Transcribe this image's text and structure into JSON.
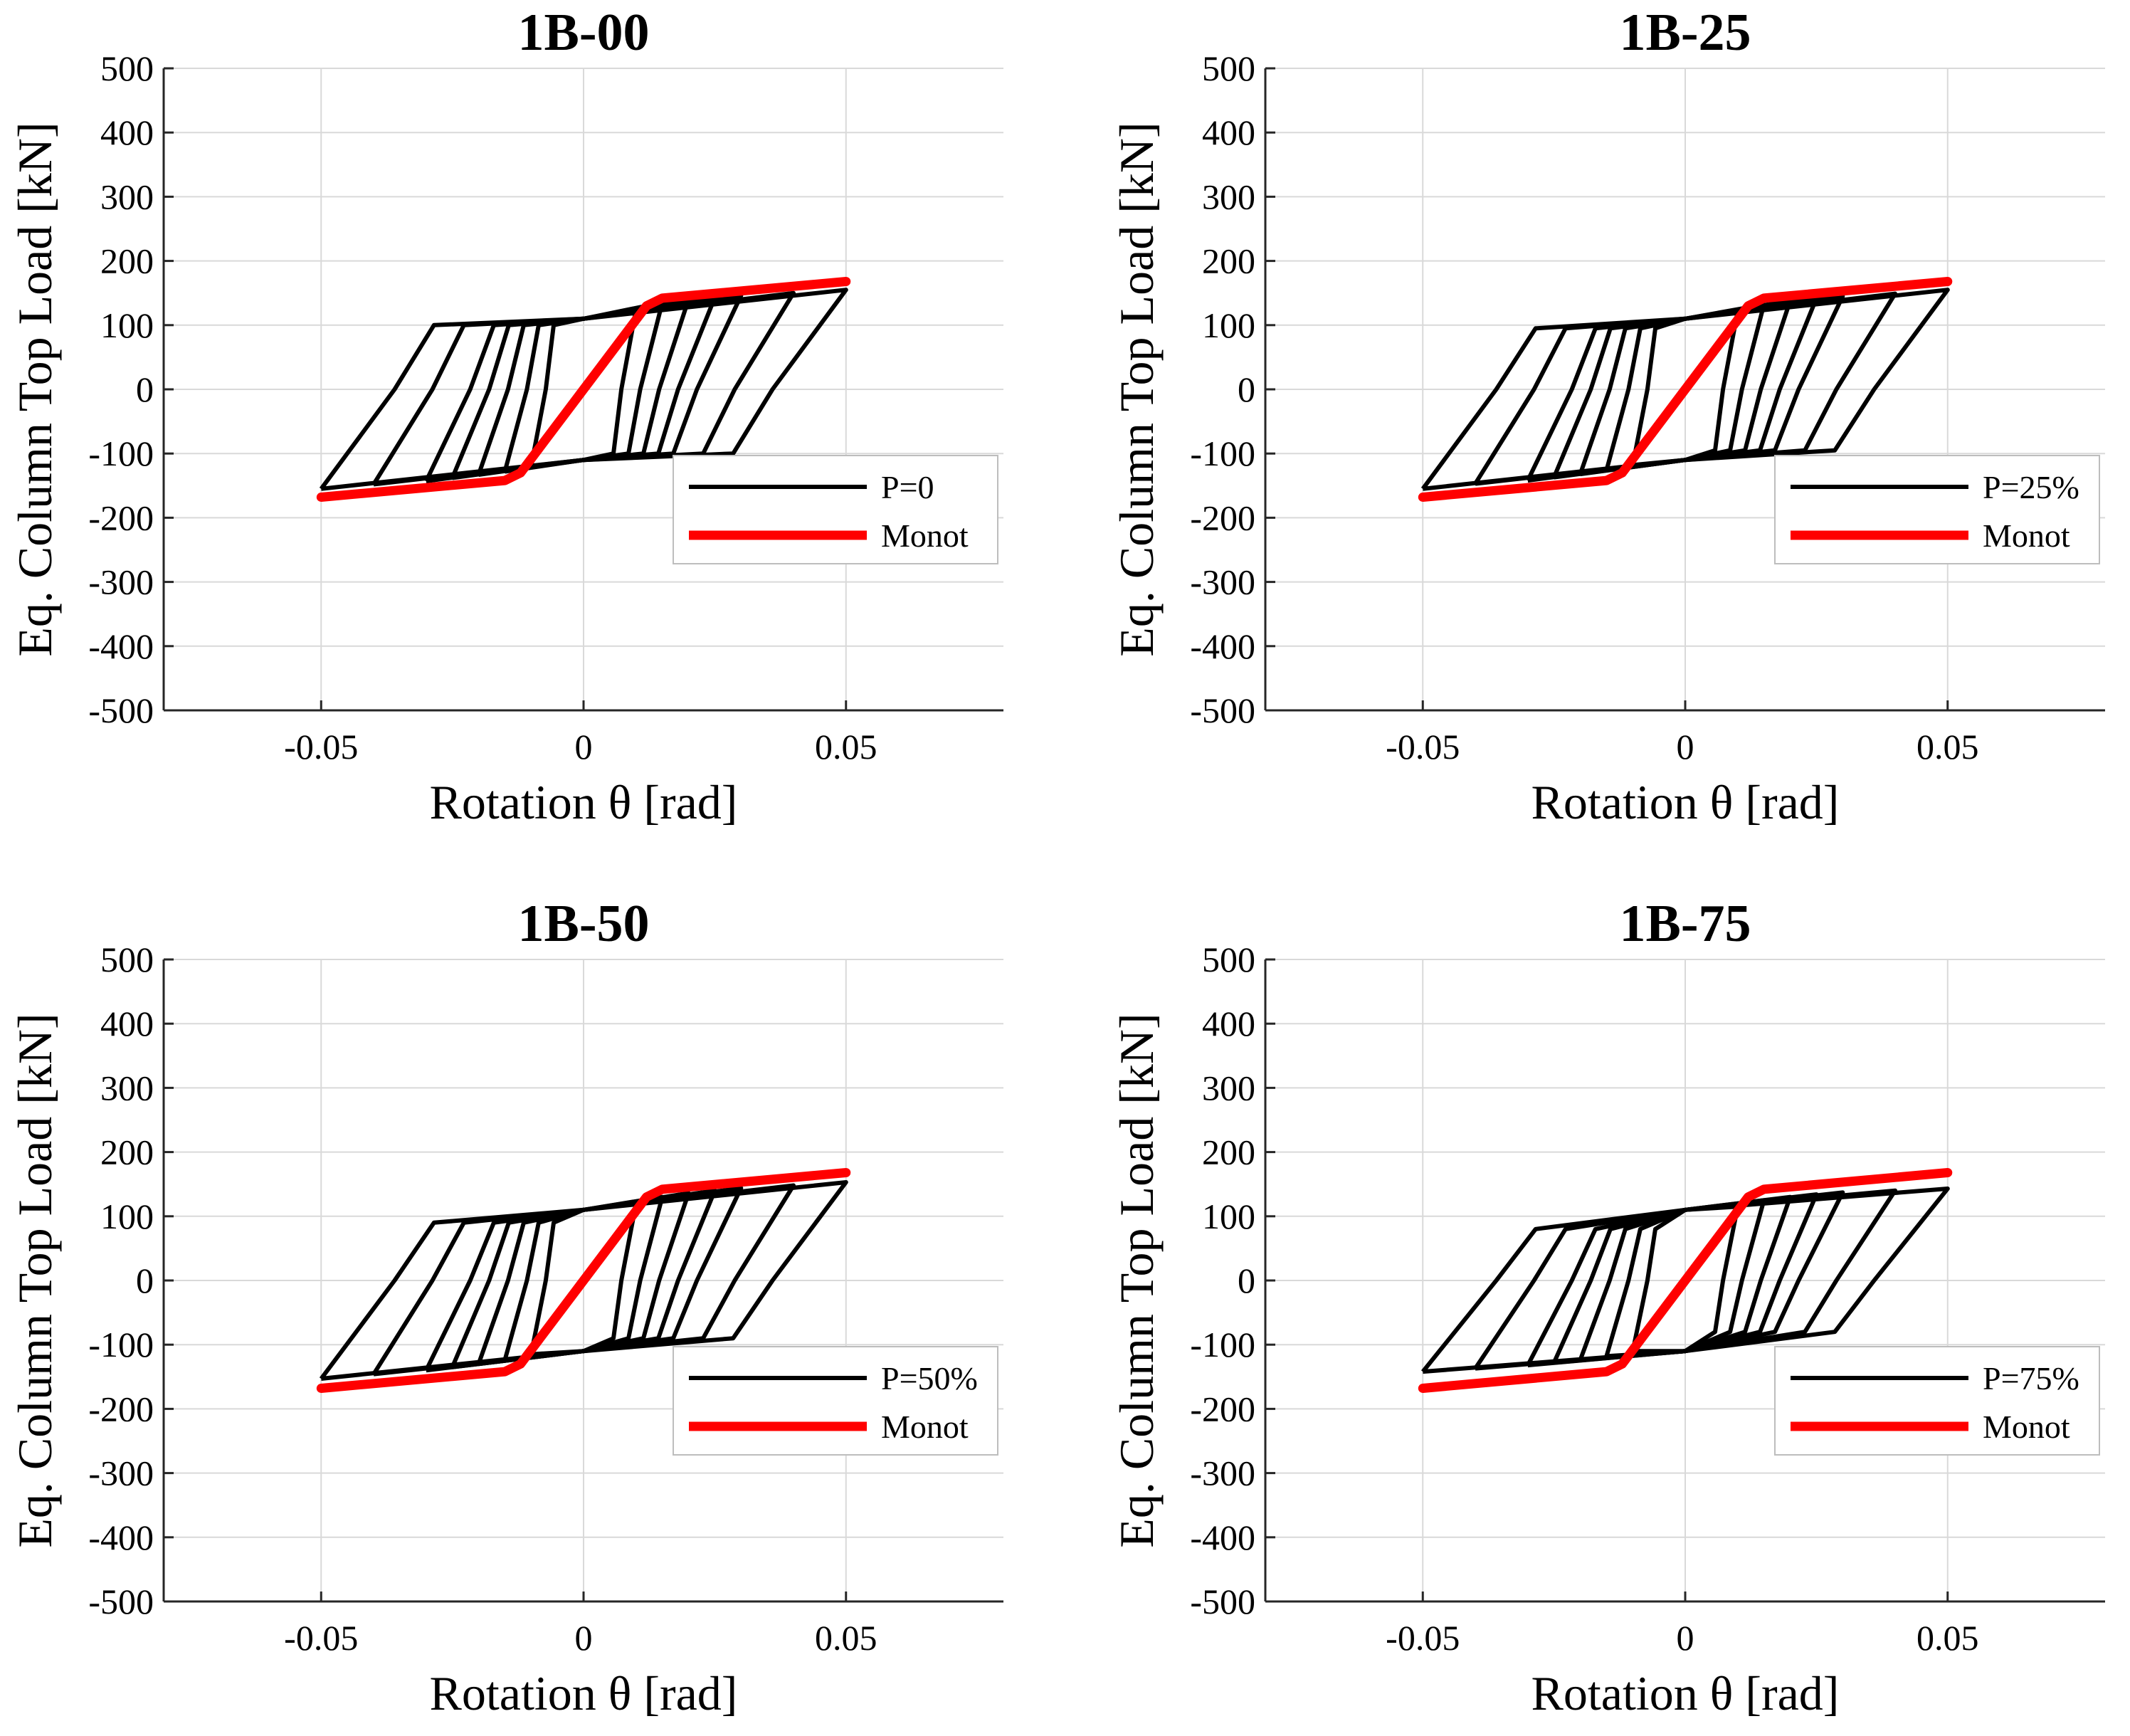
{
  "chart_data": [
    {
      "type": "line",
      "title": "1B-00",
      "xlabel": "Rotation θ [rad]",
      "ylabel": "Eq. Column Top Load [kN]",
      "xlim": [
        -0.08,
        0.08
      ],
      "ylim": [
        -500,
        500
      ],
      "xticks": [
        -0.05,
        0,
        0.05
      ],
      "xtick_labels": [
        "-0.05",
        "0",
        "0.05"
      ],
      "yticks": [
        -500,
        -400,
        -300,
        -200,
        -100,
        0,
        100,
        200,
        300,
        400,
        500
      ],
      "ytick_labels": [
        "-500",
        "-400",
        "-300",
        "-200",
        "-100",
        "0",
        "100",
        "200",
        "300",
        "400",
        "500"
      ],
      "grid": true,
      "legend_position": "lower-right",
      "series": [
        {
          "name": "P=0",
          "color": "#000000",
          "style": "cyclic",
          "amplitudes": [
            0.01,
            0.015,
            0.02,
            0.025,
            0.03,
            0.04,
            0.05
          ],
          "peak_load_pos": [
            125,
            135,
            140,
            143,
            146,
            150,
            155
          ],
          "peak_load_neg": [
            -120,
            -128,
            -133,
            -138,
            -143,
            -148,
            -155
          ],
          "reload_load": 100,
          "residual_rotation_fraction": 0.72
        },
        {
          "name": "Monot",
          "color": "#ff0000",
          "style": "envelope",
          "x": [
            -0.05,
            -0.015,
            -0.012,
            0.012,
            0.015,
            0.05
          ],
          "y": [
            -168,
            -142,
            -130,
            130,
            142,
            168
          ]
        }
      ]
    },
    {
      "type": "line",
      "title": "1B-25",
      "xlabel": "Rotation θ [rad]",
      "ylabel": "Eq. Column Top Load [kN]",
      "xlim": [
        -0.08,
        0.08
      ],
      "ylim": [
        -500,
        500
      ],
      "xticks": [
        -0.05,
        0,
        0.05
      ],
      "xtick_labels": [
        "-0.05",
        "0",
        "0.05"
      ],
      "yticks": [
        -500,
        -400,
        -300,
        -200,
        -100,
        0,
        100,
        200,
        300,
        400,
        500
      ],
      "ytick_labels": [
        "-500",
        "-400",
        "-300",
        "-200",
        "-100",
        "0",
        "100",
        "200",
        "300",
        "400",
        "500"
      ],
      "grid": true,
      "legend_position": "lower-right",
      "series": [
        {
          "name": "P=25%",
          "color": "#000000",
          "style": "cyclic",
          "amplitudes": [
            0.01,
            0.015,
            0.02,
            0.025,
            0.03,
            0.04,
            0.05
          ],
          "peak_load_pos": [
            122,
            132,
            138,
            142,
            145,
            149,
            155
          ],
          "peak_load_neg": [
            -118,
            -126,
            -132,
            -137,
            -142,
            -147,
            -155
          ],
          "reload_load": 95,
          "residual_rotation_fraction": 0.72
        },
        {
          "name": "Monot",
          "color": "#ff0000",
          "style": "envelope",
          "x": [
            -0.05,
            -0.015,
            -0.012,
            0.012,
            0.015,
            0.05
          ],
          "y": [
            -168,
            -142,
            -130,
            130,
            142,
            168
          ]
        }
      ]
    },
    {
      "type": "line",
      "title": "1B-50",
      "xlabel": "Rotation θ [rad]",
      "ylabel": "Eq. Column Top Load [kN]",
      "xlim": [
        -0.08,
        0.08
      ],
      "ylim": [
        -500,
        500
      ],
      "xticks": [
        -0.05,
        0,
        0.05
      ],
      "xtick_labels": [
        "-0.05",
        "0",
        "0.05"
      ],
      "yticks": [
        -500,
        -400,
        -300,
        -200,
        -100,
        0,
        100,
        200,
        300,
        400,
        500
      ],
      "ytick_labels": [
        "-500",
        "-400",
        "-300",
        "-200",
        "-100",
        "0",
        "100",
        "200",
        "300",
        "400",
        "500"
      ],
      "grid": true,
      "legend_position": "lower-right",
      "series": [
        {
          "name": "P=50%",
          "color": "#000000",
          "style": "cyclic",
          "amplitudes": [
            0.01,
            0.015,
            0.02,
            0.025,
            0.03,
            0.04,
            0.05
          ],
          "peak_load_pos": [
            120,
            130,
            136,
            140,
            144,
            148,
            153
          ],
          "peak_load_neg": [
            -115,
            -124,
            -130,
            -135,
            -140,
            -146,
            -153
          ],
          "reload_load": 90,
          "residual_rotation_fraction": 0.72
        },
        {
          "name": "Monot",
          "color": "#ff0000",
          "style": "envelope",
          "x": [
            -0.05,
            -0.015,
            -0.012,
            0.012,
            0.015,
            0.05
          ],
          "y": [
            -168,
            -142,
            -130,
            130,
            142,
            168
          ]
        }
      ]
    },
    {
      "type": "line",
      "title": "1B-75",
      "xlabel": "Rotation θ [rad]",
      "ylabel": "Eq. Column Top Load [kN]",
      "xlim": [
        -0.08,
        0.08
      ],
      "ylim": [
        -500,
        500
      ],
      "xticks": [
        -0.05,
        0,
        0.05
      ],
      "xtick_labels": [
        "-0.05",
        "0",
        "0.05"
      ],
      "yticks": [
        -500,
        -400,
        -300,
        -200,
        -100,
        0,
        100,
        200,
        300,
        400,
        500
      ],
      "ytick_labels": [
        "-500",
        "-400",
        "-300",
        "-200",
        "-100",
        "0",
        "100",
        "200",
        "300",
        "400",
        "500"
      ],
      "grid": true,
      "legend_position": "lower-right",
      "series": [
        {
          "name": "P=75%",
          "color": "#000000",
          "style": "cyclic",
          "amplitudes": [
            0.01,
            0.015,
            0.02,
            0.025,
            0.03,
            0.04,
            0.05
          ],
          "peak_load_pos": [
            115,
            125,
            130,
            134,
            137,
            140,
            143
          ],
          "peak_load_neg": [
            -110,
            -118,
            -124,
            -128,
            -132,
            -137,
            -142
          ],
          "reload_load": 80,
          "residual_rotation_fraction": 0.72
        },
        {
          "name": "Monot",
          "color": "#ff0000",
          "style": "envelope",
          "x": [
            -0.05,
            -0.015,
            -0.012,
            0.012,
            0.015,
            0.05
          ],
          "y": [
            -168,
            -142,
            -130,
            130,
            142,
            168
          ]
        }
      ]
    }
  ]
}
